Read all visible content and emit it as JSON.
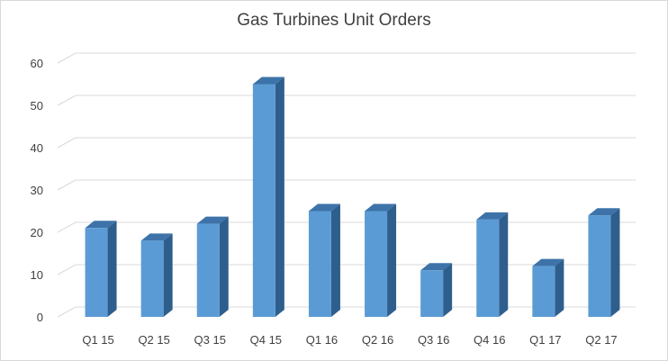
{
  "chart_data": {
    "type": "bar",
    "title": "Gas Turbines Unit Orders",
    "categories": [
      "Q1 15",
      "Q2 15",
      "Q3 15",
      "Q4 15",
      "Q1 16",
      "Q2 16",
      "Q3 16",
      "Q4 16",
      "Q1 17",
      "Q2 17"
    ],
    "values": [
      21,
      18,
      22,
      55,
      25,
      25,
      11,
      23,
      12,
      24
    ],
    "ylim": [
      0,
      60
    ],
    "yticks": [
      0,
      10,
      20,
      30,
      40,
      50,
      60
    ],
    "grid": true,
    "style": "3d-column",
    "colors": {
      "bar_front": "#5b9bd5",
      "bar_side": "#2e5e8c",
      "bar_top": "#3d73a8",
      "grid": "#d9d9d9"
    }
  }
}
